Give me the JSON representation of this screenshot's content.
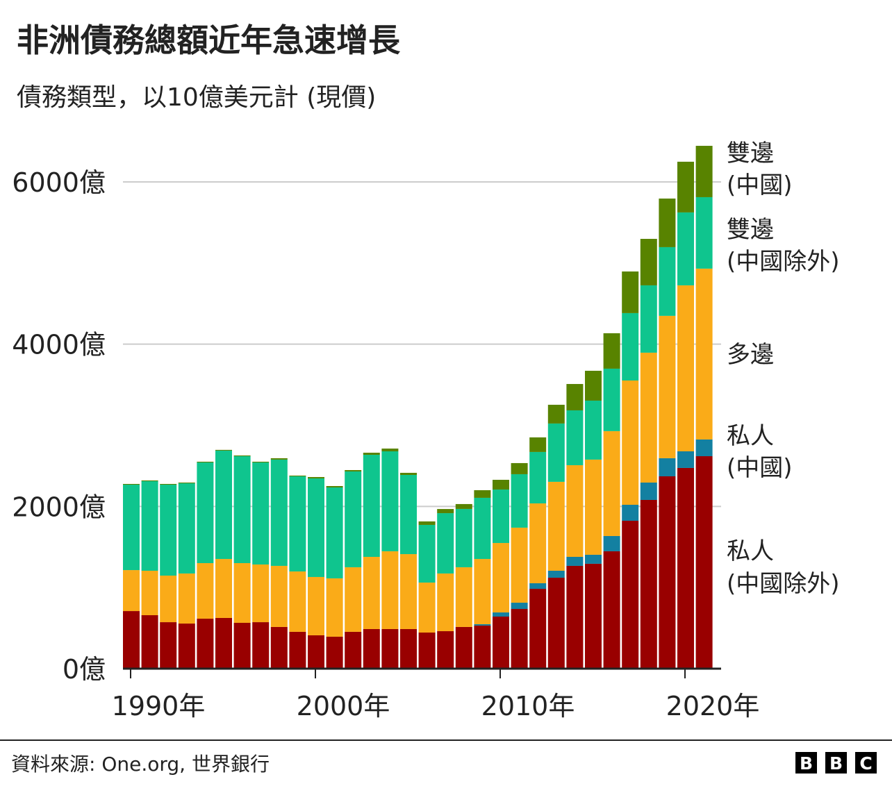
{
  "chart_data": {
    "type": "bar",
    "stacked": true,
    "title": "非洲債務總額近年急速增長",
    "subtitle": "債務類型，以10億美元計 (現價)",
    "xlabel": "",
    "ylabel": "",
    "ylim": [
      0,
      6600
    ],
    "yticks": [
      0,
      2000,
      4000,
      6000
    ],
    "ytick_labels": [
      "0億",
      "2000億",
      "4000億",
      "6000億"
    ],
    "xtick_years": [
      1990,
      2000,
      2010,
      2020
    ],
    "xtick_labels": [
      "1990年",
      "2000年",
      "2010年",
      "2020年"
    ],
    "grid": true,
    "legend_placement": "right (direct labels)",
    "categories": [
      1990,
      1991,
      1992,
      1993,
      1994,
      1995,
      1996,
      1997,
      1998,
      1999,
      2000,
      2001,
      2002,
      2003,
      2004,
      2005,
      2006,
      2007,
      2008,
      2009,
      2010,
      2011,
      2012,
      2013,
      2014,
      2015,
      2016,
      2017,
      2018,
      2019,
      2020,
      2021
    ],
    "series": [
      {
        "name": "私人\n(中國除外)",
        "label_lines": [
          "私人",
          "(中國除外)"
        ],
        "color": "#990000",
        "values": [
          710,
          659,
          573,
          556,
          616,
          625,
          565,
          573,
          514,
          454,
          411,
          394,
          454,
          488,
          488,
          488,
          445,
          462,
          514,
          531,
          642,
          736,
          984,
          1121,
          1267,
          1293,
          1447,
          1823,
          2080,
          2371,
          2474,
          2619
        ]
      },
      {
        "name": "私人\n(中國)",
        "label_lines": [
          "私人",
          "(中國)"
        ],
        "color": "#1380a1",
        "values": [
          0,
          0,
          0,
          0,
          0,
          0,
          0,
          0,
          0,
          0,
          0,
          0,
          0,
          0,
          0,
          0,
          0,
          0,
          0,
          17,
          51,
          77,
          69,
          86,
          111,
          111,
          188,
          197,
          214,
          223,
          205,
          206
        ]
      },
      {
        "name": "多邊",
        "label_lines": [
          "多邊"
        ],
        "color": "#faab18",
        "values": [
          505,
          548,
          574,
          617,
          685,
          727,
          736,
          711,
          753,
          744,
          719,
          719,
          796,
          890,
          959,
          924,
          616,
          711,
          736,
          804,
          856,
          925,
          984,
          1096,
          1130,
          1173,
          1293,
          1532,
          1601,
          1755,
          2046,
          2106
        ]
      },
      {
        "name": "雙邊\n(中國除外)",
        "label_lines": [
          "雙邊",
          "(中國除外)"
        ],
        "color": "#0fc58e",
        "values": [
          1053,
          1104,
          1121,
          1112,
          1241,
          1336,
          1318,
          1258,
          1310,
          1173,
          1215,
          1121,
          1181,
          1258,
          1232,
          976,
          711,
          744,
          719,
          754,
          659,
          659,
          634,
          719,
          676,
          727,
          770,
          831,
          830,
          847,
          899,
          881
        ]
      },
      {
        "name": "雙邊\n(中國)",
        "label_lines": [
          "雙邊",
          "(中國)"
        ],
        "color": "#588300",
        "values": [
          9,
          9,
          9,
          9,
          9,
          9,
          9,
          9,
          17,
          9,
          17,
          17,
          17,
          26,
          34,
          26,
          43,
          51,
          60,
          94,
          120,
          137,
          180,
          231,
          325,
          368,
          437,
          513,
          573,
          599,
          625,
          633
        ]
      }
    ]
  },
  "footer": {
    "source": "資料來源: One.org, 世界銀行",
    "logo": "BBC",
    "logo_letters": [
      "B",
      "B",
      "C"
    ]
  }
}
